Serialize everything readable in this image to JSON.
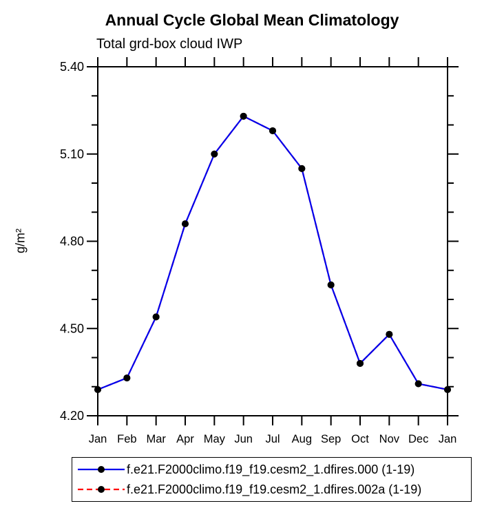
{
  "header": {
    "title": "Annual Cycle Global Mean Climatology",
    "subtitle": "Total grd-box cloud IWP"
  },
  "chart_data": {
    "type": "line",
    "title": "Annual Cycle Global Mean Climatology",
    "subtitle": "Total grd-box cloud IWP",
    "xlabel": "",
    "ylabel": "g/m²",
    "x_categories": [
      "Jan",
      "Feb",
      "Mar",
      "Apr",
      "May",
      "Jun",
      "Jul",
      "Aug",
      "Sep",
      "Oct",
      "Nov",
      "Dec",
      "Jan"
    ],
    "ylim": [
      4.2,
      5.4
    ],
    "ytick_major_step": 0.3,
    "ytick_minor_step": 0.1,
    "ytick_labels": [
      "4.20",
      "4.50",
      "4.80",
      "5.10",
      "5.40"
    ],
    "grid": false,
    "legend_position": "bottom",
    "axis_color": "#000000",
    "series": [
      {
        "name": "f.e21.F2000climo.f19_f19.cesm2_1.dfires.000 (1-19)",
        "color": "#0000ee",
        "style": "solid",
        "marker": "circle",
        "marker_color": "#000000",
        "values": [
          4.29,
          4.33,
          4.54,
          4.86,
          5.1,
          5.23,
          5.18,
          5.05,
          4.65,
          4.38,
          4.48,
          4.31,
          4.29
        ]
      },
      {
        "name": "f.e21.F2000climo.f19_f19.cesm2_1.dfires.002a (1-19)",
        "color": "#ff0000",
        "style": "dashed",
        "marker": "circle",
        "marker_color": "#000000",
        "values": [
          4.29,
          4.33,
          4.54,
          4.86,
          5.1,
          5.23,
          5.18,
          5.05,
          4.65,
          4.38,
          4.48,
          4.31,
          4.29
        ],
        "note": "curve coincides with first series and is hidden behind it in the plot"
      }
    ]
  },
  "legend": {
    "entries": [
      {
        "label": "f.e21.F2000climo.f19_f19.cesm2_1.dfires.000 (1-19)"
      },
      {
        "label": "f.e21.F2000climo.f19_f19.cesm2_1.dfires.002a (1-19)"
      }
    ]
  }
}
